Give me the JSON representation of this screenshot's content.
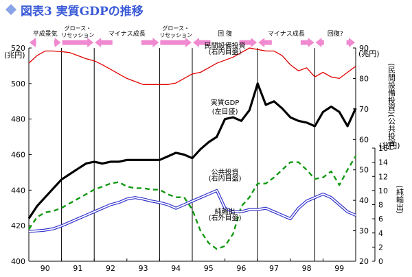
{
  "title": "図表3 実質GDPの推移",
  "colors": {
    "title": "#3b5bd8",
    "title_icon": "#8aa4e8",
    "phase_arrow": "#f08ad0",
    "gdp": "#000000",
    "private_inv": "#e00000",
    "public_inv": "#119911",
    "net_exports": "#3333cc"
  },
  "chart_data": {
    "type": "line",
    "title": "図表3 実質GDPの推移",
    "x_ticks": [
      "90",
      "91",
      "92",
      "93",
      "94",
      "95",
      "96",
      "97",
      "98",
      "99"
    ],
    "x_range": [
      1990.0,
      2000.0
    ],
    "left_axis": {
      "unit": "(兆円)",
      "ticks": [
        "400",
        "420",
        "440",
        "460",
        "480",
        "500",
        "520"
      ],
      "range": [
        400,
        520
      ]
    },
    "right_axis_1": {
      "unit": "(兆円)",
      "ticks": [
        "20",
        "30",
        "40",
        "50",
        "60",
        "70",
        "80",
        "90"
      ],
      "range": [
        20,
        90
      ],
      "label": "(民間設備投資)(公共投資)"
    },
    "right_axis_2": {
      "unit": "(兆円)",
      "ticks": [
        "0",
        "2",
        "4",
        "6",
        "8",
        "10",
        "12",
        "14",
        "16"
      ],
      "range": [
        0,
        16
      ],
      "label": "(純輸出)"
    },
    "grid": false,
    "phases": [
      {
        "label": "平成景気",
        "start": 1990.0,
        "end": 1991.0,
        "small": false
      },
      {
        "label": "グロース・リセッション",
        "start": 1991.0,
        "end": 1992.0,
        "small": true
      },
      {
        "label": "マイナス成長",
        "start": 1992.0,
        "end": 1994.0,
        "small": false
      },
      {
        "label": "グロース・リセッション",
        "start": 1994.0,
        "end": 1995.0,
        "small": true
      },
      {
        "label": "回 復",
        "start": 1995.0,
        "end": 1997.0,
        "small": false
      },
      {
        "label": "マイナス成長",
        "start": 1997.0,
        "end": 1998.75,
        "small": false
      },
      {
        "label": "回復?",
        "start": 1998.75,
        "end": 2000.0,
        "small": false
      }
    ],
    "series": [
      {
        "name": "実質GDP(左目盛)",
        "axis": "left",
        "x": [
          1990.0,
          1990.25,
          1990.5,
          1990.75,
          1991.0,
          1991.25,
          1991.5,
          1991.75,
          1992.0,
          1992.25,
          1992.5,
          1992.75,
          1993.0,
          1993.25,
          1993.5,
          1993.75,
          1994.0,
          1994.25,
          1994.5,
          1994.75,
          1995.0,
          1995.25,
          1995.5,
          1995.75,
          1996.0,
          1996.25,
          1996.5,
          1996.75,
          1997.0,
          1997.25,
          1997.5,
          1997.75,
          1998.0,
          1998.25,
          1998.5,
          1998.75,
          1999.0,
          1999.25,
          1999.5,
          1999.75,
          2000.0
        ],
        "values": [
          424,
          431,
          436,
          441,
          446,
          449,
          452,
          455,
          456,
          455,
          456,
          456,
          457,
          457,
          457,
          457,
          457,
          459,
          461,
          460,
          458,
          463,
          467,
          470,
          480,
          481,
          479,
          485,
          500,
          488,
          490,
          486,
          481,
          479,
          478,
          476,
          484,
          487,
          484,
          476,
          486
        ]
      },
      {
        "name": "民間設備投資(右内目盛)",
        "axis": "right1",
        "x": [
          1990.0,
          1990.25,
          1990.5,
          1990.75,
          1991.0,
          1991.25,
          1991.5,
          1991.75,
          1992.0,
          1992.25,
          1992.5,
          1992.75,
          1993.0,
          1993.25,
          1993.5,
          1993.75,
          1994.0,
          1994.25,
          1994.5,
          1994.75,
          1995.0,
          1995.25,
          1995.5,
          1995.75,
          1996.0,
          1996.25,
          1996.5,
          1996.75,
          1997.0,
          1997.25,
          1997.5,
          1997.75,
          1998.0,
          1998.25,
          1998.5,
          1998.75,
          1999.0,
          1999.25,
          1999.5,
          1999.75,
          2000.0
        ],
        "values": [
          85.0,
          87.5,
          89.0,
          89.0,
          88.8,
          88.5,
          87.5,
          86.5,
          85.8,
          84.5,
          83.0,
          81.5,
          80.0,
          79.0,
          78.0,
          78.0,
          78.0,
          78.0,
          78.5,
          80.0,
          81.5,
          82.0,
          83.5,
          85.0,
          86.0,
          87.0,
          88.5,
          90.0,
          89.5,
          89.0,
          89.0,
          87.5,
          84.5,
          82.5,
          83.5,
          80.5,
          82.0,
          80.5,
          80.0,
          82.0,
          84.0
        ]
      },
      {
        "name": "公共投資(右内目盛)",
        "axis": "right1",
        "x": [
          1990.0,
          1990.25,
          1990.5,
          1990.75,
          1991.0,
          1991.25,
          1991.5,
          1991.75,
          1992.0,
          1992.25,
          1992.5,
          1992.75,
          1993.0,
          1993.25,
          1993.5,
          1993.75,
          1994.0,
          1994.25,
          1994.5,
          1994.75,
          1995.0,
          1995.25,
          1995.5,
          1995.75,
          1996.0,
          1996.25,
          1996.5,
          1996.75,
          1997.0,
          1997.25,
          1997.5,
          1997.75,
          1998.0,
          1998.25,
          1998.5,
          1998.75,
          1999.0,
          1999.25,
          1999.5,
          1999.75,
          2000.0
        ],
        "values": [
          30.5,
          34.5,
          36.0,
          36.5,
          37.5,
          39.0,
          40.5,
          42.0,
          43.5,
          44.5,
          45.5,
          46.0,
          44.5,
          44.0,
          44.0,
          43.5,
          43.5,
          42.0,
          41.0,
          41.0,
          37.0,
          30.0,
          26.0,
          24.0,
          25.0,
          29.0,
          38.0,
          41.0,
          45.5,
          45.5,
          47.5,
          50.0,
          52.5,
          52.5,
          50.0,
          47.0,
          47.5,
          49.5,
          45.0,
          50.0,
          54.5
        ]
      },
      {
        "name": "純輸出(右外目盛)",
        "axis": "right2",
        "x": [
          1990.0,
          1990.25,
          1990.5,
          1990.75,
          1991.0,
          1991.25,
          1991.5,
          1991.75,
          1992.0,
          1992.25,
          1992.5,
          1992.75,
          1993.0,
          1993.25,
          1993.5,
          1993.75,
          1994.0,
          1994.25,
          1994.5,
          1994.75,
          1995.0,
          1995.25,
          1995.5,
          1995.75,
          1996.0,
          1996.25,
          1996.5,
          1996.75,
          1997.0,
          1997.25,
          1997.5,
          1997.75,
          1998.0,
          1998.25,
          1998.5,
          1998.75,
          1999.0,
          1999.25,
          1999.5,
          1999.75,
          2000.0
        ],
        "values": [
          4.2,
          4.3,
          4.4,
          4.6,
          5.0,
          5.5,
          6.0,
          6.5,
          7.0,
          7.5,
          8.0,
          8.3,
          8.8,
          9.0,
          8.8,
          8.5,
          8.3,
          8.0,
          7.5,
          8.0,
          8.5,
          9.0,
          9.5,
          10.0,
          7.5,
          7.0,
          7.0,
          7.3,
          7.3,
          7.5,
          7.0,
          6.5,
          6.0,
          7.5,
          8.5,
          9.0,
          9.5,
          9.0,
          8.0,
          7.0,
          6.5
        ]
      }
    ],
    "annotations": [
      {
        "text": "民間設備投資",
        "x": 1996.0,
        "axis": "right1",
        "value": 90.0
      },
      {
        "text": "(右内目盛)",
        "x": 1996.0,
        "axis": "right1",
        "value": 88.0
      },
      {
        "text": "実質GDP",
        "x": 1996.0,
        "axis": "left",
        "value": 488
      },
      {
        "text": "(左目盛)",
        "x": 1996.0,
        "axis": "left",
        "value": 483
      },
      {
        "text": "公共投資",
        "x": 1996.0,
        "axis": "right1",
        "value": 48.5
      },
      {
        "text": "(右内目盛)",
        "x": 1996.0,
        "axis": "right1",
        "value": 46.5
      },
      {
        "text": "純輸出",
        "x": 1996.0,
        "axis": "right1",
        "value": 35.5
      },
      {
        "text": "(右外目盛)",
        "x": 1996.0,
        "axis": "right1",
        "value": 33.5
      }
    ]
  }
}
